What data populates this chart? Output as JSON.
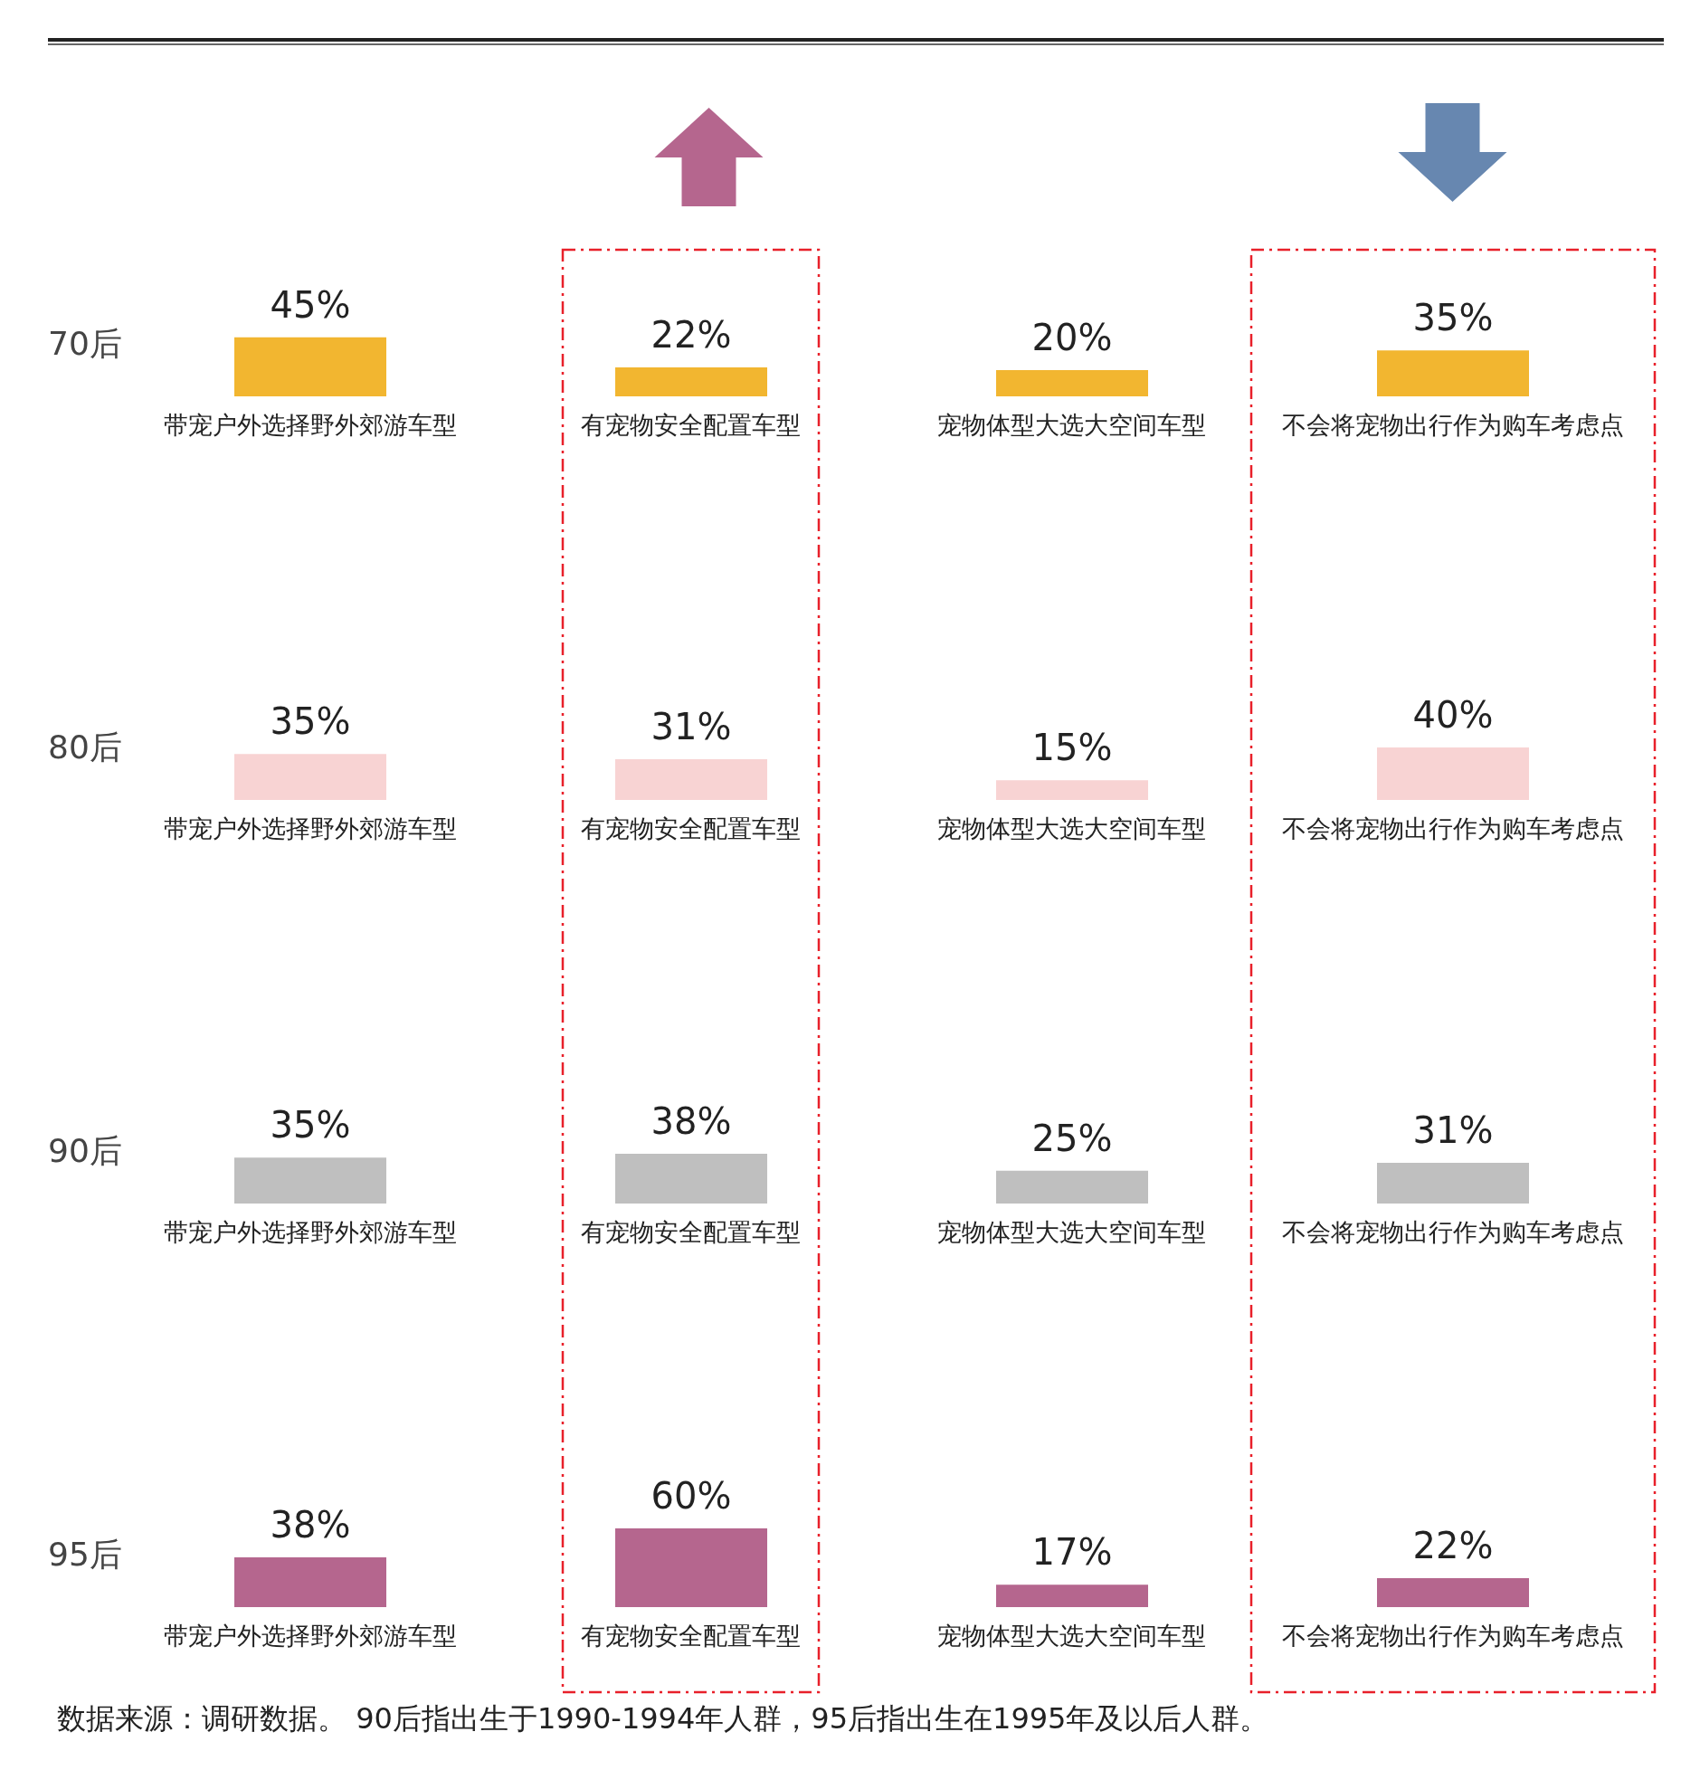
{
  "chart_data": [
    {
      "type": "bar",
      "ylabel": "70后",
      "categories": [
        "带宠户外选择野外郊游车型",
        "有宠物安全配置车型",
        "宠物体型大选大空间车型",
        "不会将宠物出行作为购车考虑点"
      ],
      "values": [
        45,
        22,
        20,
        35
      ],
      "value_labels": [
        "45%",
        "22%",
        "20%",
        "35%"
      ],
      "color": "#f2b630"
    },
    {
      "type": "bar",
      "ylabel": "80后",
      "categories": [
        "带宠户外选择野外郊游车型",
        "有宠物安全配置车型",
        "宠物体型大选大空间车型",
        "不会将宠物出行作为购车考虑点"
      ],
      "values": [
        35,
        31,
        15,
        40
      ],
      "value_labels": [
        "35%",
        "31%",
        "15%",
        "40%"
      ],
      "color": "#f8d3d3"
    },
    {
      "type": "bar",
      "ylabel": "90后",
      "categories": [
        "带宠户外选择野外郊游车型",
        "有宠物安全配置车型",
        "宠物体型大选大空间车型",
        "不会将宠物出行作为购车考虑点"
      ],
      "values": [
        35,
        38,
        25,
        31
      ],
      "value_labels": [
        "35%",
        "38%",
        "25%",
        "31%"
      ],
      "color": "#bfbfbf"
    },
    {
      "type": "bar",
      "ylabel": "95后",
      "categories": [
        "带宠户外选择野外郊游车型",
        "有宠物安全配置车型",
        "宠物体型大选大空间车型",
        "不会将宠物出行作为购车考虑点"
      ],
      "values": [
        38,
        60,
        17,
        22
      ],
      "value_labels": [
        "38%",
        "60%",
        "17%",
        "22%"
      ],
      "color": "#b5668e",
      "annotations": [
        "数据来源：调研数据。 90后指出生于1990-1994年人群，95后指出生在1995年及以后人群。"
      ]
    }
  ]
}
